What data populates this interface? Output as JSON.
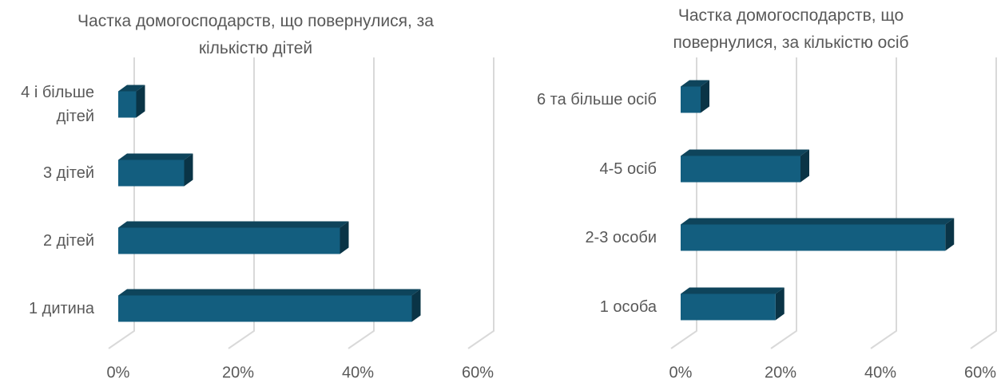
{
  "chart_data": [
    {
      "type": "bar3d",
      "title": "Частка домогосподарств, що повернулися, за кількістю дітей",
      "categories": [
        "4 і більше дітей",
        "3 дітей",
        "2 дітей",
        "1 дитина"
      ],
      "values": [
        3,
        11,
        37,
        49
      ],
      "color": "#135e7f",
      "xlim": [
        0,
        60
      ],
      "xticks": [
        {
          "value": 0,
          "label": "0%"
        },
        {
          "value": 20,
          "label": "20%"
        },
        {
          "value": 40,
          "label": "40%"
        },
        {
          "value": 60,
          "label": "60%"
        }
      ],
      "grid": true
    },
    {
      "type": "bar3d",
      "title": "Частка домогосподарств, що повернулися, за кількістю осіб",
      "categories": [
        "6 та більше осіб",
        "4-5 осіб",
        "2-3 особи",
        "1 особа"
      ],
      "values": [
        4,
        24,
        53,
        19
      ],
      "color": "#135e7f",
      "xlim": [
        0,
        60
      ],
      "xticks": [
        {
          "value": 0,
          "label": "0%"
        },
        {
          "value": 20,
          "label": "20%"
        },
        {
          "value": 40,
          "label": "40%"
        },
        {
          "value": 60,
          "label": "60%"
        }
      ],
      "grid": true
    }
  ]
}
